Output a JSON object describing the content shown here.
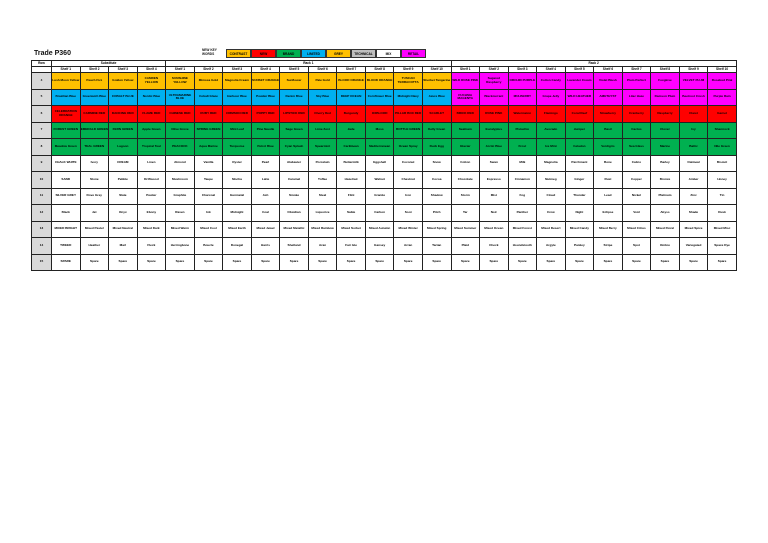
{
  "title": "Trade P360",
  "new_key_label": "NEW KEY WORDS",
  "legend": [
    {
      "label": "CONTRAST",
      "color": "#ffc000"
    },
    {
      "label": "NEW",
      "color": "#ff0000"
    },
    {
      "label": "BRAND",
      "color": "#00b050"
    },
    {
      "label": "LIMITED",
      "color": "#00b0f0"
    },
    {
      "label": "GREY",
      "color": "#ffc000"
    },
    {
      "label": "TECHNICAL",
      "color": "#bfbfbf"
    },
    {
      "label": "MIX",
      "color": "#ffffff"
    },
    {
      "label": "RETAIL",
      "color": "#ff00ff"
    }
  ],
  "groups": [
    {
      "label": "Row",
      "span": 1
    },
    {
      "label": "Substitute",
      "span": 4
    },
    {
      "label": "Rack 1",
      "span": 10
    },
    {
      "label": "Rack 2",
      "span": 10
    }
  ],
  "col_headers": [
    "Shelf 1",
    "Shelf 2",
    "Shelf 3",
    "Shelf 4",
    "Shelf 1",
    "Shelf 2",
    "Shelf 3",
    "Shelf 4",
    "Shelf 5",
    "Shelf 6",
    "Shelf 7",
    "Shelf 8",
    "Shelf 9",
    "Shelf 10",
    "Shelf 1",
    "Shelf 2",
    "Shelf 3",
    "Shelf 4",
    "Shelf 5",
    "Shelf 6",
    "Shelf 7",
    "Shelf 8",
    "Shelf 9",
    "Shelf 10"
  ],
  "rows": [
    {
      "no": "4",
      "cells": [
        [
          "Lush Moon Yellow",
          "#ffc000"
        ],
        [
          "Peach Fizz",
          "#ffc000"
        ],
        [
          "Golden Yellow",
          "#ffc000"
        ],
        [
          "CAMDEN YELLOW",
          "#ffc000"
        ],
        [
          "SUNSHINE YELLOW",
          "#ffc000"
        ],
        [
          "Mimosa Gold",
          "#ffc000"
        ],
        [
          "Magnolia Cream",
          "#ffc000"
        ],
        [
          "SUNSET ORANGE",
          "#ffc000"
        ],
        [
          "Sunflower",
          "#ffc000"
        ],
        [
          "Pale Gold",
          "#ffc000"
        ],
        [
          "BLOOD ORANGE",
          "#ffc000"
        ],
        [
          "BLOOD ORANGE",
          "#ffc000"
        ],
        [
          "TUSCAN TERRACOTTA",
          "#ffc000"
        ],
        [
          "Sherbet Tangerine",
          "#ffc000"
        ],
        [
          "WILD ROSE PINK",
          "#ff00ff"
        ],
        [
          "Sugared Raspberry",
          "#ff00ff"
        ],
        [
          "ORCHID PURPLE",
          "#ff00ff"
        ],
        [
          "Cotton Candy",
          "#ff00ff"
        ],
        [
          "Lavender Cream",
          "#ff00ff"
        ],
        [
          "Violet Blush",
          "#ff00ff"
        ],
        [
          "Plum Perfect",
          "#ff00ff"
        ],
        [
          "Foxglove",
          "#ff00ff"
        ],
        [
          "VELVET PLUM",
          "#ff00ff"
        ],
        [
          "Rosebud Pink",
          "#ff00ff"
        ]
      ]
    },
    {
      "no": "5",
      "cells": [
        [
          "Brazilian Blue",
          "#00b0f0"
        ],
        [
          "Greenwich Blue",
          "#00b0f0"
        ],
        [
          "COBALT BLUE",
          "#00b0f0"
        ],
        [
          "Nordic Blue",
          "#00b0f0"
        ],
        [
          "ULTRAMARINE BLUE",
          "#00b0f0"
        ],
        [
          "Cobalt Glaze",
          "#00b0f0"
        ],
        [
          "Harbour Blue",
          "#00b0f0"
        ],
        [
          "Powder Blue",
          "#00b0f0"
        ],
        [
          "Denim Blue",
          "#00b0f0"
        ],
        [
          "Sky Blue",
          "#00b0f0"
        ],
        [
          "DEEP OCEAN",
          "#00b0f0"
        ],
        [
          "Cornflower Blue",
          "#00b0f0"
        ],
        [
          "Midnight Navy",
          "#00b0f0"
        ],
        [
          "Azure Blue",
          "#00b0f0"
        ],
        [
          "FUCHSIA MAGENTA",
          "#ff00ff"
        ],
        [
          "Blackcurrant",
          "#ff00ff"
        ],
        [
          "MULBERRY",
          "#ff00ff"
        ],
        [
          "Grape Jelly",
          "#ff00ff"
        ],
        [
          "WILD HEATHER",
          "#ff00ff"
        ],
        [
          "AMETHYST",
          "#ff00ff"
        ],
        [
          "Lilac Haze",
          "#ff00ff"
        ],
        [
          "Damson Plum",
          "#ff00ff"
        ],
        [
          "Beetroot Crush",
          "#ff00ff"
        ],
        [
          "Purple Rain",
          "#ff00ff"
        ]
      ]
    },
    {
      "no": "6",
      "cells": [
        [
          "CELEBRATION ORANGE",
          "#ff0000"
        ],
        [
          "CARMINE RED",
          "#ff0000"
        ],
        [
          "DANCING RED",
          "#ff0000"
        ],
        [
          "FLAME RED",
          "#ff0000"
        ],
        [
          "CHINESE RED",
          "#ff0000"
        ],
        [
          "RUBY RED",
          "#ff0000"
        ],
        [
          "CRIMSON RED",
          "#ff0000"
        ],
        [
          "POPPY RED",
          "#ff0000"
        ],
        [
          "LIPSTICK RED",
          "#ff0000"
        ],
        [
          "Cherry Red",
          "#ff0000"
        ],
        [
          "Burgundy",
          "#ff0000"
        ],
        [
          "OXBLOOD",
          "#ff0000"
        ],
        [
          "PILLAR BOX RED",
          "#ff0000"
        ],
        [
          "SCARLET",
          "#ff0000"
        ],
        [
          "BRICK RED",
          "#ff0000"
        ],
        [
          "ROSE PINK",
          "#ff0000"
        ],
        [
          "Watermelon",
          "#ff0000"
        ],
        [
          "Flamingo",
          "#ff0000"
        ],
        [
          "Coral Reef",
          "#ff0000"
        ],
        [
          "Strawberry",
          "#ff0000"
        ],
        [
          "Cranberry",
          "#ff0000"
        ],
        [
          "Raspberry",
          "#ff0000"
        ],
        [
          "Claret",
          "#ff0000"
        ],
        [
          "Garnet",
          "#ff0000"
        ]
      ]
    },
    {
      "no": "7",
      "cells": [
        [
          "FOREST GREEN",
          "#00b050"
        ],
        [
          "EMERALD GREEN",
          "#00b050"
        ],
        [
          "FERN GREEN",
          "#00b050"
        ],
        [
          "Apple Green",
          "#00b050"
        ],
        [
          "Olive Grove",
          "#00b050"
        ],
        [
          "SPRING GREEN",
          "#00b050"
        ],
        [
          "Mint Leaf",
          "#00b050"
        ],
        [
          "Pine Needle",
          "#00b050"
        ],
        [
          "Sage Green",
          "#00b050"
        ],
        [
          "Lime Zest",
          "#00b050"
        ],
        [
          "Jade",
          "#00b050"
        ],
        [
          "Moss",
          "#00b050"
        ],
        [
          "BOTTLE GREEN",
          "#00b050"
        ],
        [
          "Kelly Green",
          "#00b050"
        ],
        [
          "Seafoam",
          "#00b050"
        ],
        [
          "Eucalyptus",
          "#00b050"
        ],
        [
          "Pistachio",
          "#00b050"
        ],
        [
          "Avocado",
          "#00b050"
        ],
        [
          "Juniper",
          "#00b050"
        ],
        [
          "Basil",
          "#00b050"
        ],
        [
          "Cactus",
          "#00b050"
        ],
        [
          "Clover",
          "#00b050"
        ],
        [
          "Ivy",
          "#00b050"
        ],
        [
          "Shamrock",
          "#00b050"
        ]
      ]
    },
    {
      "no": "8",
      "cells": [
        [
          "Meadow Green",
          "#00b050"
        ],
        [
          "TEAL GREEN",
          "#00b050"
        ],
        [
          "Lagoon",
          "#00b050"
        ],
        [
          "Tropical Teal",
          "#00b050"
        ],
        [
          "PEACOCK",
          "#00b050"
        ],
        [
          "Aqua Marine",
          "#00b050"
        ],
        [
          "Turquoise",
          "#00b050"
        ],
        [
          "Petrol Blue",
          "#00b050"
        ],
        [
          "Cyan Splash",
          "#00b050"
        ],
        [
          "Spearmint",
          "#00b050"
        ],
        [
          "Caribbean",
          "#00b050"
        ],
        [
          "Mediterranean",
          "#00b050"
        ],
        [
          "Ocean Spray",
          "#00b050"
        ],
        [
          "Duck Egg",
          "#00b050"
        ],
        [
          "Glacier",
          "#00b050"
        ],
        [
          "Arctic Blue",
          "#00b050"
        ],
        [
          "Frost",
          "#00b050"
        ],
        [
          "Ice Mint",
          "#00b050"
        ],
        [
          "Celadon",
          "#00b050"
        ],
        [
          "Verdigris",
          "#00b050"
        ],
        [
          "Sea Glass",
          "#00b050"
        ],
        [
          "Marine",
          "#00b050"
        ],
        [
          "Baltic",
          "#00b050"
        ],
        [
          "Nile Green",
          "#00b050"
        ]
      ]
    },
    {
      "no": "9",
      "cells": [
        [
          "CHALK WHITE",
          "#fff"
        ],
        [
          "Ivory",
          "#fff"
        ],
        [
          "CREAM",
          "#fff"
        ],
        [
          "Linen",
          "#fff"
        ],
        [
          "Almond",
          "#fff"
        ],
        [
          "Vanilla",
          "#fff"
        ],
        [
          "Oyster",
          "#fff"
        ],
        [
          "Pearl",
          "#fff"
        ],
        [
          "Alabaster",
          "#fff"
        ],
        [
          "Porcelain",
          "#fff"
        ],
        [
          "Buttermilk",
          "#fff"
        ],
        [
          "Eggshell",
          "#fff"
        ],
        [
          "Coconut",
          "#fff"
        ],
        [
          "Snow",
          "#fff"
        ],
        [
          "Cotton",
          "#fff"
        ],
        [
          "Swan",
          "#fff"
        ],
        [
          "Milk",
          "#fff"
        ],
        [
          "Magnolia",
          "#fff"
        ],
        [
          "Parchment",
          "#fff"
        ],
        [
          "Bone",
          "#fff"
        ],
        [
          "Calico",
          "#fff"
        ],
        [
          "Barley",
          "#fff"
        ],
        [
          "Oatmeal",
          "#fff"
        ],
        [
          "Biscuit",
          "#fff"
        ]
      ]
    },
    {
      "no": "10",
      "cells": [
        [
          "SAND",
          "#fff"
        ],
        [
          "Stone",
          "#fff"
        ],
        [
          "Pebble",
          "#fff"
        ],
        [
          "Driftwood",
          "#fff"
        ],
        [
          "Mushroom",
          "#fff"
        ],
        [
          "Taupe",
          "#fff"
        ],
        [
          "Mocha",
          "#fff"
        ],
        [
          "Latte",
          "#fff"
        ],
        [
          "Caramel",
          "#fff"
        ],
        [
          "Toffee",
          "#fff"
        ],
        [
          "Hazelnut",
          "#fff"
        ],
        [
          "Walnut",
          "#fff"
        ],
        [
          "Chestnut",
          "#fff"
        ],
        [
          "Cocoa",
          "#fff"
        ],
        [
          "Chocolate",
          "#fff"
        ],
        [
          "Espresso",
          "#fff"
        ],
        [
          "Cinnamon",
          "#fff"
        ],
        [
          "Nutmeg",
          "#fff"
        ],
        [
          "Ginger",
          "#fff"
        ],
        [
          "Rust",
          "#fff"
        ],
        [
          "Copper",
          "#fff"
        ],
        [
          "Bronze",
          "#fff"
        ],
        [
          "Amber",
          "#fff"
        ],
        [
          "Honey",
          "#fff"
        ]
      ]
    },
    {
      "no": "11",
      "cells": [
        [
          "SILVER GREY",
          "#fff"
        ],
        [
          "Dove Grey",
          "#fff"
        ],
        [
          "Slate",
          "#fff"
        ],
        [
          "Pewter",
          "#fff"
        ],
        [
          "Graphite",
          "#fff"
        ],
        [
          "Charcoal",
          "#fff"
        ],
        [
          "Gunmetal",
          "#fff"
        ],
        [
          "Ash",
          "#fff"
        ],
        [
          "Smoke",
          "#fff"
        ],
        [
          "Steel",
          "#fff"
        ],
        [
          "Flint",
          "#fff"
        ],
        [
          "Granite",
          "#fff"
        ],
        [
          "Iron",
          "#fff"
        ],
        [
          "Shadow",
          "#fff"
        ],
        [
          "Storm",
          "#fff"
        ],
        [
          "Mist",
          "#fff"
        ],
        [
          "Fog",
          "#fff"
        ],
        [
          "Cloud",
          "#fff"
        ],
        [
          "Thunder",
          "#fff"
        ],
        [
          "Lead",
          "#fff"
        ],
        [
          "Nickel",
          "#fff"
        ],
        [
          "Platinum",
          "#fff"
        ],
        [
          "Zinc",
          "#fff"
        ],
        [
          "Tin",
          "#fff"
        ]
      ]
    },
    {
      "no": "12",
      "cells": [
        [
          "Black",
          "#fff"
        ],
        [
          "Jet",
          "#fff"
        ],
        [
          "Onyx",
          "#fff"
        ],
        [
          "Ebony",
          "#fff"
        ],
        [
          "Raven",
          "#fff"
        ],
        [
          "Ink",
          "#fff"
        ],
        [
          "Midnight",
          "#fff"
        ],
        [
          "Coal",
          "#fff"
        ],
        [
          "Obsidian",
          "#fff"
        ],
        [
          "Liquorice",
          "#fff"
        ],
        [
          "Sable",
          "#fff"
        ],
        [
          "Carbon",
          "#fff"
        ],
        [
          "Soot",
          "#fff"
        ],
        [
          "Pitch",
          "#fff"
        ],
        [
          "Tar",
          "#fff"
        ],
        [
          "Noir",
          "#fff"
        ],
        [
          "Panther",
          "#fff"
        ],
        [
          "Crow",
          "#fff"
        ],
        [
          "Night",
          "#fff"
        ],
        [
          "Eclipse",
          "#fff"
        ],
        [
          "Void",
          "#fff"
        ],
        [
          "Abyss",
          "#fff"
        ],
        [
          "Shade",
          "#fff"
        ],
        [
          "Dusk",
          "#fff"
        ]
      ]
    },
    {
      "no": "13",
      "cells": [
        [
          "MIXED BRIGHT",
          "#fff"
        ],
        [
          "Mixed Pastel",
          "#fff"
        ],
        [
          "Mixed Neutral",
          "#fff"
        ],
        [
          "Mixed Dark",
          "#fff"
        ],
        [
          "Mixed Warm",
          "#fff"
        ],
        [
          "Mixed Cool",
          "#fff"
        ],
        [
          "Mixed Earth",
          "#fff"
        ],
        [
          "Mixed Jewel",
          "#fff"
        ],
        [
          "Mixed Metallic",
          "#fff"
        ],
        [
          "Mixed Rainbow",
          "#fff"
        ],
        [
          "Mixed Sorbet",
          "#fff"
        ],
        [
          "Mixed Autumn",
          "#fff"
        ],
        [
          "Mixed Winter",
          "#fff"
        ],
        [
          "Mixed Spring",
          "#fff"
        ],
        [
          "Mixed Summer",
          "#fff"
        ],
        [
          "Mixed Ocean",
          "#fff"
        ],
        [
          "Mixed Forest",
          "#fff"
        ],
        [
          "Mixed Desert",
          "#fff"
        ],
        [
          "Mixed Candy",
          "#fff"
        ],
        [
          "Mixed Berry",
          "#fff"
        ],
        [
          "Mixed Citrus",
          "#fff"
        ],
        [
          "Mixed Floral",
          "#fff"
        ],
        [
          "Mixed Spice",
          "#fff"
        ],
        [
          "Mixed Misc",
          "#fff"
        ]
      ]
    },
    {
      "no": "14",
      "cells": [
        [
          "TWEED",
          "#fff"
        ],
        [
          "Heather",
          "#fff"
        ],
        [
          "Marl",
          "#fff"
        ],
        [
          "Fleck",
          "#fff"
        ],
        [
          "Herringbone",
          "#fff"
        ],
        [
          "Boucle",
          "#fff"
        ],
        [
          "Donegal",
          "#fff"
        ],
        [
          "Harris",
          "#fff"
        ],
        [
          "Shetland",
          "#fff"
        ],
        [
          "Aran",
          "#fff"
        ],
        [
          "Fair Isle",
          "#fff"
        ],
        [
          "Gansey",
          "#fff"
        ],
        [
          "Arran",
          "#fff"
        ],
        [
          "Tartan",
          "#fff"
        ],
        [
          "Plaid",
          "#fff"
        ],
        [
          "Check",
          "#fff"
        ],
        [
          "Houndstooth",
          "#fff"
        ],
        [
          "Argyle",
          "#fff"
        ],
        [
          "Paisley",
          "#fff"
        ],
        [
          "Stripe",
          "#fff"
        ],
        [
          "Spot",
          "#fff"
        ],
        [
          "Ombre",
          "#fff"
        ],
        [
          "Variegated",
          "#fff"
        ],
        [
          "Space Dye",
          "#fff"
        ]
      ]
    },
    {
      "no": "15",
      "cells": [
        [
          "SPARE",
          "#fff"
        ],
        [
          "Spare",
          "#fff"
        ],
        [
          "Spare",
          "#fff"
        ],
        [
          "Spare",
          "#fff"
        ],
        [
          "Spare",
          "#fff"
        ],
        [
          "Spare",
          "#fff"
        ],
        [
          "Spare",
          "#fff"
        ],
        [
          "Spare",
          "#fff"
        ],
        [
          "Spare",
          "#fff"
        ],
        [
          "Spare",
          "#fff"
        ],
        [
          "Spare",
          "#fff"
        ],
        [
          "Spare",
          "#fff"
        ],
        [
          "Spare",
          "#fff"
        ],
        [
          "Spare",
          "#fff"
        ],
        [
          "Spare",
          "#fff"
        ],
        [
          "Spare",
          "#fff"
        ],
        [
          "Spare",
          "#fff"
        ],
        [
          "Spare",
          "#fff"
        ],
        [
          "Spare",
          "#fff"
        ],
        [
          "Spare",
          "#fff"
        ],
        [
          "Spare",
          "#fff"
        ],
        [
          "Spare",
          "#fff"
        ],
        [
          "Spare",
          "#fff"
        ],
        [
          "Spare",
          "#fff"
        ]
      ]
    }
  ]
}
